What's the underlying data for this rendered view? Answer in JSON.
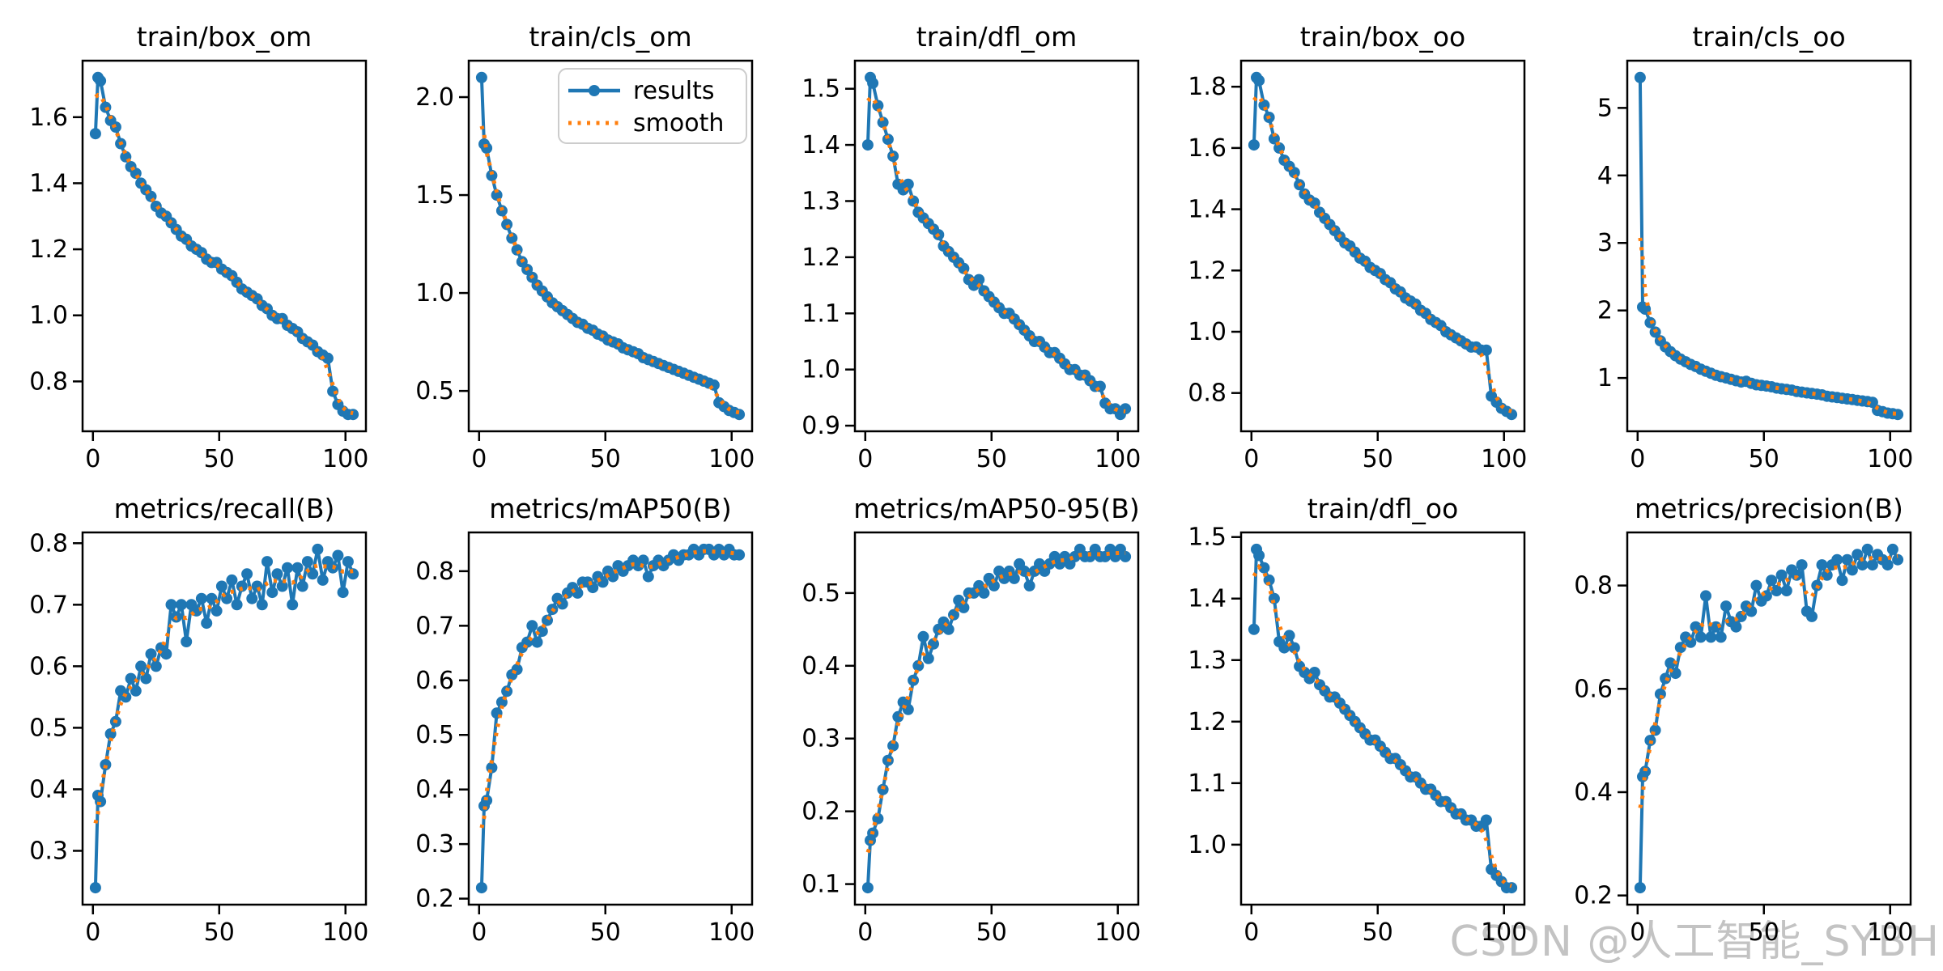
{
  "figure": {
    "background": "#ffffff",
    "watermark": {
      "text": "CSDN @人工智能_SYBH",
      "color": "#c3c3c3"
    },
    "legend": {
      "location": "upper right of train/cls_om subplot",
      "entries": [
        {
          "label": "results",
          "color": "#1f77b4",
          "style": "solid line with circle markers"
        },
        {
          "label": "smooth",
          "color": "#ff7f0e",
          "style": "dotted line"
        }
      ]
    }
  },
  "chart_data": {
    "type": "line",
    "grid": {
      "rows": 2,
      "cols": 5
    },
    "xlabel": "",
    "ylabel": "",
    "xticks": [
      0,
      50,
      100
    ],
    "xlim": [
      -4.1,
      108.1
    ],
    "x_epochs": [
      1,
      2,
      3,
      5,
      7,
      9,
      11,
      13,
      15,
      17,
      19,
      21,
      23,
      25,
      27,
      29,
      31,
      33,
      35,
      37,
      39,
      41,
      43,
      45,
      47,
      49,
      51,
      53,
      55,
      57,
      59,
      61,
      63,
      65,
      67,
      69,
      71,
      73,
      75,
      77,
      79,
      81,
      83,
      85,
      87,
      89,
      91,
      93,
      95,
      97,
      99,
      101,
      103
    ],
    "series_style": {
      "results": {
        "color": "#1f77b4",
        "line_width": 4,
        "marker": "circle",
        "marker_radius": 7
      },
      "smooth": {
        "color": "#ff7f0e",
        "line_width": 5,
        "dash": "dotted",
        "derived_from": "results",
        "method": "gaussian",
        "sigma_points": 1.3
      }
    },
    "axis_color": "#000000",
    "subplots": [
      {
        "title": "train/box_om",
        "yticks": [
          0.8,
          1.0,
          1.2,
          1.4,
          1.6
        ],
        "ytick_decimals": 1,
        "has_legend": false,
        "results": [
          1.55,
          1.72,
          1.71,
          1.63,
          1.59,
          1.57,
          1.52,
          1.48,
          1.45,
          1.43,
          1.4,
          1.38,
          1.36,
          1.33,
          1.31,
          1.3,
          1.28,
          1.26,
          1.24,
          1.23,
          1.21,
          1.2,
          1.19,
          1.17,
          1.16,
          1.16,
          1.14,
          1.13,
          1.12,
          1.1,
          1.08,
          1.07,
          1.06,
          1.05,
          1.03,
          1.02,
          1.0,
          0.99,
          0.99,
          0.97,
          0.96,
          0.95,
          0.93,
          0.92,
          0.91,
          0.89,
          0.88,
          0.87,
          0.77,
          0.73,
          0.71,
          0.7,
          0.7
        ]
      },
      {
        "title": "train/cls_om",
        "yticks": [
          0.5,
          1.0,
          1.5,
          2.0
        ],
        "ytick_decimals": 1,
        "has_legend": true,
        "results": [
          2.1,
          1.76,
          1.74,
          1.6,
          1.5,
          1.42,
          1.35,
          1.28,
          1.22,
          1.16,
          1.12,
          1.08,
          1.04,
          1.01,
          0.98,
          0.95,
          0.93,
          0.91,
          0.89,
          0.87,
          0.85,
          0.84,
          0.82,
          0.81,
          0.79,
          0.78,
          0.76,
          0.75,
          0.74,
          0.72,
          0.71,
          0.7,
          0.69,
          0.67,
          0.66,
          0.65,
          0.64,
          0.63,
          0.62,
          0.61,
          0.6,
          0.59,
          0.58,
          0.57,
          0.56,
          0.55,
          0.54,
          0.53,
          0.44,
          0.42,
          0.4,
          0.39,
          0.38
        ]
      },
      {
        "title": "train/dfl_om",
        "yticks": [
          0.9,
          1.0,
          1.1,
          1.2,
          1.3,
          1.4,
          1.5
        ],
        "ytick_decimals": 1,
        "has_legend": false,
        "results": [
          1.4,
          1.52,
          1.51,
          1.47,
          1.44,
          1.41,
          1.38,
          1.33,
          1.32,
          1.33,
          1.3,
          1.28,
          1.27,
          1.26,
          1.25,
          1.24,
          1.22,
          1.21,
          1.2,
          1.19,
          1.18,
          1.16,
          1.15,
          1.16,
          1.14,
          1.13,
          1.12,
          1.11,
          1.1,
          1.1,
          1.09,
          1.08,
          1.07,
          1.06,
          1.05,
          1.05,
          1.04,
          1.03,
          1.03,
          1.02,
          1.01,
          1.0,
          1.0,
          0.99,
          0.99,
          0.98,
          0.97,
          0.97,
          0.94,
          0.93,
          0.93,
          0.92,
          0.93
        ]
      },
      {
        "title": "train/box_oo",
        "yticks": [
          0.8,
          1.0,
          1.2,
          1.4,
          1.6,
          1.8
        ],
        "ytick_decimals": 1,
        "has_legend": false,
        "results": [
          1.61,
          1.83,
          1.82,
          1.74,
          1.7,
          1.63,
          1.6,
          1.56,
          1.54,
          1.52,
          1.48,
          1.45,
          1.43,
          1.42,
          1.39,
          1.37,
          1.35,
          1.33,
          1.31,
          1.29,
          1.28,
          1.26,
          1.24,
          1.23,
          1.21,
          1.2,
          1.19,
          1.17,
          1.16,
          1.14,
          1.13,
          1.11,
          1.1,
          1.09,
          1.07,
          1.06,
          1.04,
          1.03,
          1.02,
          1.0,
          0.99,
          0.98,
          0.97,
          0.96,
          0.95,
          0.95,
          0.94,
          0.94,
          0.79,
          0.77,
          0.75,
          0.74,
          0.73
        ]
      },
      {
        "title": "train/cls_oo",
        "yticks": [
          1,
          2,
          3,
          4,
          5
        ],
        "ytick_decimals": 0,
        "has_legend": false,
        "results": [
          5.45,
          2.05,
          2.02,
          1.82,
          1.68,
          1.55,
          1.46,
          1.39,
          1.33,
          1.28,
          1.24,
          1.2,
          1.17,
          1.13,
          1.1,
          1.07,
          1.04,
          1.02,
          1.0,
          0.98,
          0.96,
          0.94,
          0.95,
          0.92,
          0.9,
          0.89,
          0.88,
          0.87,
          0.85,
          0.84,
          0.83,
          0.82,
          0.8,
          0.79,
          0.78,
          0.77,
          0.76,
          0.75,
          0.73,
          0.72,
          0.71,
          0.7,
          0.69,
          0.68,
          0.67,
          0.66,
          0.65,
          0.64,
          0.52,
          0.5,
          0.48,
          0.47,
          0.46
        ]
      },
      {
        "title": "metrics/recall(B)",
        "yticks": [
          0.3,
          0.4,
          0.5,
          0.6,
          0.7,
          0.8
        ],
        "ytick_decimals": 1,
        "has_legend": false,
        "results": [
          0.24,
          0.39,
          0.38,
          0.44,
          0.49,
          0.51,
          0.56,
          0.55,
          0.58,
          0.56,
          0.6,
          0.58,
          0.62,
          0.6,
          0.63,
          0.62,
          0.7,
          0.68,
          0.7,
          0.64,
          0.7,
          0.69,
          0.71,
          0.67,
          0.71,
          0.69,
          0.73,
          0.71,
          0.74,
          0.7,
          0.73,
          0.75,
          0.71,
          0.73,
          0.7,
          0.77,
          0.72,
          0.75,
          0.73,
          0.76,
          0.7,
          0.76,
          0.73,
          0.77,
          0.75,
          0.79,
          0.74,
          0.77,
          0.76,
          0.78,
          0.72,
          0.77,
          0.75
        ]
      },
      {
        "title": "metrics/mAP50(B)",
        "yticks": [
          0.2,
          0.3,
          0.4,
          0.5,
          0.6,
          0.7,
          0.8
        ],
        "ytick_decimals": 1,
        "has_legend": false,
        "results": [
          0.22,
          0.37,
          0.38,
          0.44,
          0.54,
          0.56,
          0.58,
          0.61,
          0.62,
          0.66,
          0.67,
          0.7,
          0.67,
          0.69,
          0.71,
          0.73,
          0.75,
          0.74,
          0.76,
          0.77,
          0.76,
          0.78,
          0.78,
          0.77,
          0.79,
          0.78,
          0.8,
          0.79,
          0.81,
          0.8,
          0.81,
          0.82,
          0.81,
          0.82,
          0.79,
          0.81,
          0.82,
          0.81,
          0.82,
          0.83,
          0.82,
          0.83,
          0.83,
          0.84,
          0.83,
          0.84,
          0.84,
          0.83,
          0.84,
          0.83,
          0.84,
          0.83,
          0.83
        ]
      },
      {
        "title": "metrics/mAP50-95(B)",
        "yticks": [
          0.1,
          0.2,
          0.3,
          0.4,
          0.5
        ],
        "ytick_decimals": 1,
        "has_legend": false,
        "results": [
          0.095,
          0.16,
          0.17,
          0.19,
          0.23,
          0.27,
          0.29,
          0.33,
          0.35,
          0.34,
          0.38,
          0.4,
          0.44,
          0.41,
          0.43,
          0.45,
          0.46,
          0.45,
          0.47,
          0.49,
          0.48,
          0.5,
          0.5,
          0.51,
          0.5,
          0.52,
          0.51,
          0.53,
          0.52,
          0.53,
          0.52,
          0.54,
          0.53,
          0.51,
          0.53,
          0.54,
          0.53,
          0.54,
          0.55,
          0.54,
          0.55,
          0.54,
          0.55,
          0.56,
          0.55,
          0.55,
          0.56,
          0.55,
          0.55,
          0.56,
          0.55,
          0.56,
          0.55
        ]
      },
      {
        "title": "train/dfl_oo",
        "yticks": [
          1.0,
          1.1,
          1.2,
          1.3,
          1.4,
          1.5
        ],
        "ytick_decimals": 1,
        "has_legend": false,
        "results": [
          1.35,
          1.48,
          1.47,
          1.45,
          1.43,
          1.4,
          1.33,
          1.32,
          1.34,
          1.32,
          1.29,
          1.28,
          1.27,
          1.28,
          1.26,
          1.25,
          1.24,
          1.24,
          1.23,
          1.22,
          1.21,
          1.2,
          1.19,
          1.18,
          1.17,
          1.17,
          1.16,
          1.15,
          1.14,
          1.14,
          1.13,
          1.12,
          1.11,
          1.11,
          1.1,
          1.09,
          1.09,
          1.08,
          1.07,
          1.07,
          1.06,
          1.05,
          1.05,
          1.04,
          1.04,
          1.03,
          1.03,
          1.04,
          0.96,
          0.95,
          0.94,
          0.93,
          0.93
        ]
      },
      {
        "title": "metrics/precision(B)",
        "yticks": [
          0.2,
          0.4,
          0.6,
          0.8
        ],
        "ytick_decimals": 1,
        "has_legend": false,
        "results": [
          0.215,
          0.43,
          0.44,
          0.5,
          0.52,
          0.59,
          0.62,
          0.65,
          0.63,
          0.68,
          0.7,
          0.69,
          0.72,
          0.7,
          0.78,
          0.7,
          0.72,
          0.7,
          0.76,
          0.73,
          0.72,
          0.74,
          0.76,
          0.75,
          0.8,
          0.77,
          0.78,
          0.81,
          0.79,
          0.82,
          0.79,
          0.83,
          0.82,
          0.84,
          0.75,
          0.74,
          0.8,
          0.84,
          0.82,
          0.84,
          0.85,
          0.81,
          0.85,
          0.83,
          0.86,
          0.84,
          0.87,
          0.84,
          0.86,
          0.85,
          0.84,
          0.87,
          0.85
        ]
      }
    ]
  }
}
